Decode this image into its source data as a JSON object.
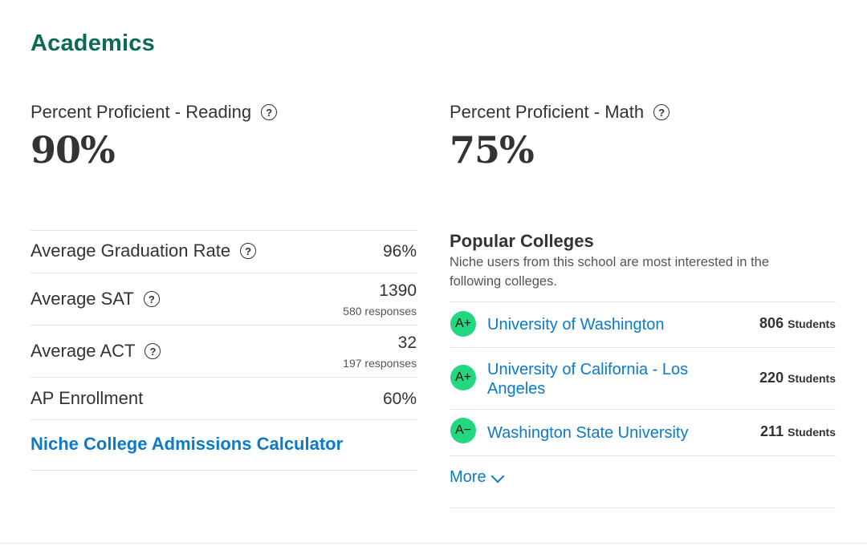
{
  "section": {
    "title": "Academics"
  },
  "proficiency": {
    "reading": {
      "label": "Percent Proficient - Reading",
      "value": "90%"
    },
    "math": {
      "label": "Percent Proficient - Math",
      "value": "75%"
    }
  },
  "stats": [
    {
      "label": "Average Graduation Rate",
      "value": "96%",
      "sub": ""
    },
    {
      "label": "Average SAT",
      "value": "1390",
      "sub": "580 responses"
    },
    {
      "label": "Average ACT",
      "value": "32",
      "sub": "197 responses"
    },
    {
      "label": "AP Enrollment",
      "value": "60%",
      "sub": ""
    }
  ],
  "calculator_link": "Niche College Admissions Calculator",
  "popular_colleges": {
    "title": "Popular Colleges",
    "description": "Niche users from this school are most interested in the following colleges.",
    "colleges": [
      {
        "grade": "A+",
        "name": "University of Washington",
        "count": "806",
        "unit": "Students"
      },
      {
        "grade": "A+",
        "name": "University of California - Los Angeles",
        "count": "220",
        "unit": "Students"
      },
      {
        "grade": "A−",
        "name": "Washington State University",
        "count": "211",
        "unit": "Students"
      }
    ],
    "more_label": "More"
  },
  "help_icon_glyph": "?",
  "colors": {
    "title_green": "#0c6b55",
    "link_blue": "#0a7ac9",
    "grade_green": "#23d680"
  }
}
